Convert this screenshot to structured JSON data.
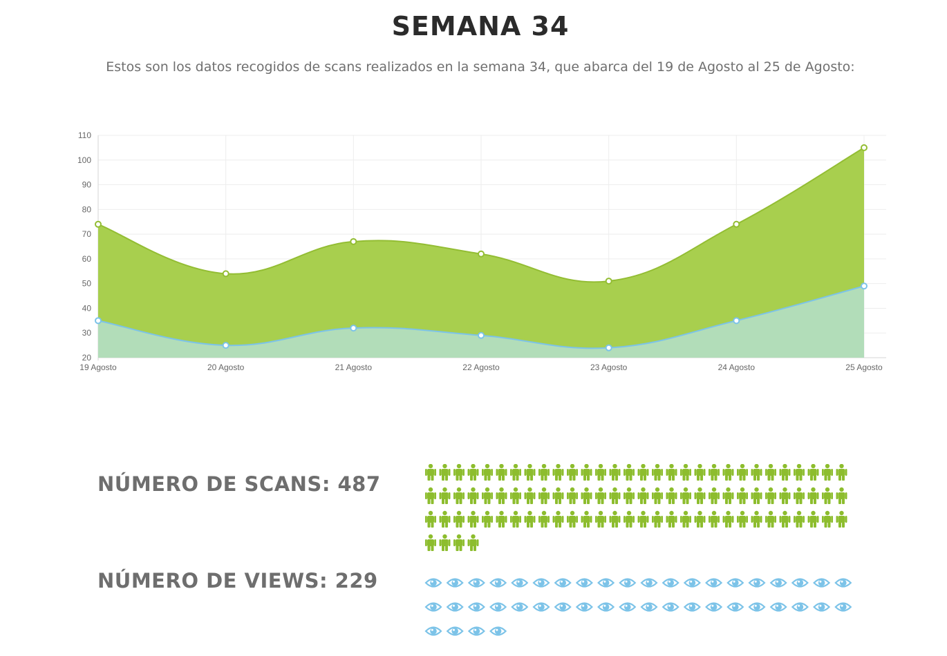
{
  "header": {
    "title": "SEMANA 34",
    "subtitle": "Estos son los datos recogidos de scans realizados en la semana 34, que abarca del 19 de Agosto al 25 de Agosto:"
  },
  "chart_data": {
    "type": "area",
    "categories": [
      "19 Agosto",
      "20 Agosto",
      "21 Agosto",
      "22 Agosto",
      "23 Agosto",
      "24 Agosto",
      "25 Agosto"
    ],
    "series": [
      {
        "values": [
          74,
          54,
          67,
          62,
          51,
          74,
          105
        ],
        "color": "#a8cf4e",
        "line_color": "#93bd33"
      },
      {
        "values": [
          35,
          25,
          32,
          29,
          24,
          35,
          49
        ],
        "color": "#b2ddb9",
        "line_color": "#7cc3e8"
      }
    ],
    "ylim": [
      20,
      110
    ],
    "yticks": [
      20,
      30,
      40,
      50,
      60,
      70,
      80,
      90,
      100,
      110
    ],
    "grid": true
  },
  "stats": {
    "scans": {
      "label": "NÚMERO DE SCANS: 487",
      "icon_count": 94,
      "icon": "person-icon",
      "color": "#8dbd2e"
    },
    "views": {
      "label": "NÚMERO DE VIEWS: 229",
      "icon_count": 44,
      "icon": "eye-icon",
      "color": "#7cc3e8"
    }
  }
}
